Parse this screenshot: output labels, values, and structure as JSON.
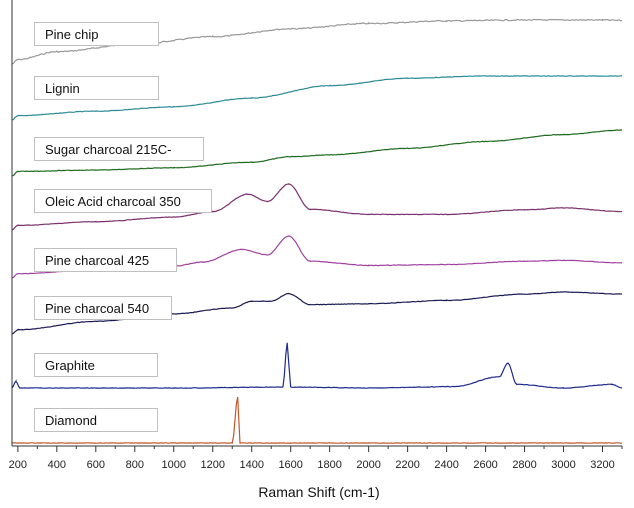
{
  "chart_data": {
    "type": "line",
    "title": "",
    "xlabel": "Raman Shift (cm-1)",
    "ylabel": "",
    "xlim": [
      170,
      3300
    ],
    "xticks": [
      200,
      400,
      600,
      800,
      1000,
      1200,
      1400,
      1600,
      1800,
      2000,
      2200,
      2400,
      2600,
      2800,
      3000,
      3200
    ],
    "grid": false,
    "legend": "per-trace boxes at left",
    "series": [
      {
        "name": "Pine chip",
        "color": "#999999",
        "points": [
          [
            170,
            0.0
          ],
          [
            200,
            0.1
          ],
          [
            400,
            0.28
          ],
          [
            800,
            0.45
          ],
          [
            1200,
            0.62
          ],
          [
            1600,
            0.8
          ],
          [
            2000,
            0.92
          ],
          [
            2400,
            0.98
          ],
          [
            2800,
            1.0
          ],
          [
            3200,
            1.0
          ],
          [
            3300,
            0.99
          ]
        ]
      },
      {
        "name": "Lignin",
        "color": "#2a8a96",
        "points": [
          [
            170,
            0.0
          ],
          [
            200,
            0.1
          ],
          [
            600,
            0.2
          ],
          [
            1000,
            0.3
          ],
          [
            1400,
            0.5
          ],
          [
            1800,
            0.78
          ],
          [
            2200,
            0.95
          ],
          [
            2600,
            1.0
          ],
          [
            3000,
            1.0
          ],
          [
            3300,
            1.0
          ]
        ]
      },
      {
        "name": "Sugar charcoal  215C-",
        "color": "#1e6b1e",
        "points": [
          [
            170,
            0.0
          ],
          [
            200,
            0.1
          ],
          [
            600,
            0.13
          ],
          [
            1000,
            0.18
          ],
          [
            1400,
            0.3
          ],
          [
            1600,
            0.42
          ],
          [
            1800,
            0.46
          ],
          [
            2200,
            0.6
          ],
          [
            2600,
            0.75
          ],
          [
            3000,
            0.9
          ],
          [
            3300,
            1.0
          ]
        ]
      },
      {
        "name": "Oleic Acid charcoal 350",
        "color": "#7a2f6e",
        "points": [
          [
            170,
            0.0
          ],
          [
            200,
            0.1
          ],
          [
            600,
            0.18
          ],
          [
            1000,
            0.28
          ],
          [
            1200,
            0.4
          ],
          [
            1380,
            0.78
          ],
          [
            1480,
            0.62
          ],
          [
            1590,
            1.0
          ],
          [
            1700,
            0.45
          ],
          [
            2000,
            0.34
          ],
          [
            2400,
            0.34
          ],
          [
            2800,
            0.44
          ],
          [
            3000,
            0.48
          ],
          [
            3300,
            0.4
          ]
        ]
      },
      {
        "name": "Pine charcoal 425",
        "color": "#a040a0",
        "points": [
          [
            170,
            0.0
          ],
          [
            200,
            0.1
          ],
          [
            600,
            0.2
          ],
          [
            1000,
            0.28
          ],
          [
            1150,
            0.38
          ],
          [
            1350,
            0.68
          ],
          [
            1480,
            0.55
          ],
          [
            1590,
            1.0
          ],
          [
            1700,
            0.4
          ],
          [
            2000,
            0.3
          ],
          [
            2400,
            0.32
          ],
          [
            2800,
            0.4
          ],
          [
            3000,
            0.42
          ],
          [
            3300,
            0.36
          ]
        ]
      },
      {
        "name": "Pine charcoal 540",
        "color": "#1a1a55",
        "points": [
          [
            170,
            0.0
          ],
          [
            200,
            0.1
          ],
          [
            600,
            0.3
          ],
          [
            1000,
            0.48
          ],
          [
            1300,
            0.62
          ],
          [
            1400,
            0.78
          ],
          [
            1500,
            0.78
          ],
          [
            1590,
            0.96
          ],
          [
            1700,
            0.7
          ],
          [
            2000,
            0.72
          ],
          [
            2400,
            0.8
          ],
          [
            2800,
            0.95
          ],
          [
            3000,
            1.0
          ],
          [
            3300,
            0.95
          ]
        ]
      },
      {
        "name": "Graphite",
        "color": "#1c2a8a",
        "points": [
          [
            170,
            0.0
          ],
          [
            190,
            0.15
          ],
          [
            210,
            0.0
          ],
          [
            1000,
            0.0
          ],
          [
            1560,
            0.02
          ],
          [
            1582,
            1.0
          ],
          [
            1600,
            0.02
          ],
          [
            2000,
            0.0
          ],
          [
            2440,
            0.03
          ],
          [
            2670,
            0.25
          ],
          [
            2715,
            0.55
          ],
          [
            2760,
            0.08
          ],
          [
            3000,
            0.0
          ],
          [
            3248,
            0.08
          ],
          [
            3300,
            0.0
          ]
        ]
      },
      {
        "name": "Diamond",
        "color": "#c0582a",
        "points": [
          [
            170,
            0.0
          ],
          [
            1300,
            0.0
          ],
          [
            1328,
            1.0
          ],
          [
            1340,
            0.0
          ],
          [
            3300,
            0.0
          ]
        ]
      }
    ]
  }
}
